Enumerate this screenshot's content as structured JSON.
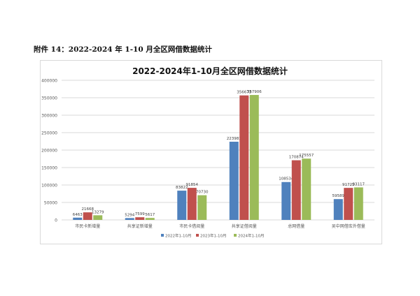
{
  "caption": "附件 14：2022-2024 年 1-10 月全区网借数据统计",
  "chart_data": {
    "type": "bar",
    "title": "2022-2024年1-10月全区网借数据统计",
    "categories": [
      "市民卡新增量",
      "共享证新增量",
      "市民卡借阅量",
      "共享证借阅量",
      "总网借量",
      "吴中网借库外借量"
    ],
    "series": [
      {
        "name": "2022年1-10月",
        "color": "#4f81bd",
        "values": [
          6463,
          5294,
          83822,
          223983,
          108534,
          59589
        ]
      },
      {
        "name": "2023年1-10月",
        "color": "#c0504d",
        "values": [
          21668,
          7599,
          91854,
          356673,
          170874,
          91725
        ]
      },
      {
        "name": "2024年1-10月",
        "color": "#9bbb59",
        "values": [
          13279,
          5617,
          70730,
          357906,
          175557,
          93117
        ]
      }
    ],
    "ylim": [
      0,
      400000
    ],
    "yticks": [
      0,
      50000,
      100000,
      150000,
      200000,
      250000,
      300000,
      350000,
      400000
    ],
    "grid": true,
    "legend": "bottom"
  }
}
